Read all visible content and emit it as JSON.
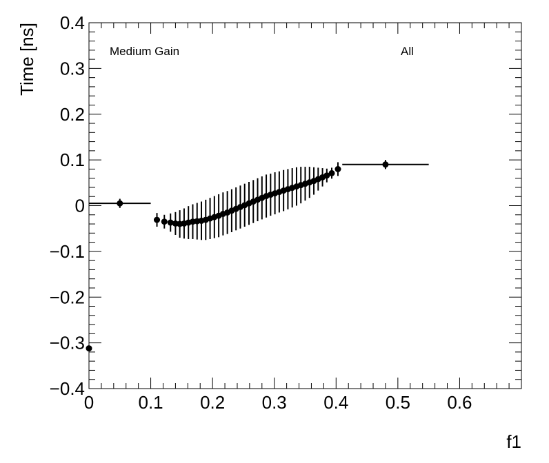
{
  "chart_data": {
    "type": "scatter",
    "title": "",
    "xlabel": "f1",
    "ylabel": "Time [ns]",
    "xlim": [
      0,
      0.7
    ],
    "ylim": [
      -0.4,
      0.4
    ],
    "x_ticks": [
      "0",
      "0.1",
      "0.2",
      "0.3",
      "0.4",
      "0.5",
      "0.6"
    ],
    "y_ticks": [
      "−0.4",
      "−0.3",
      "−0.2",
      "−0.1",
      "0",
      "0.1",
      "0.2",
      "0.3",
      "0.4"
    ],
    "grid": false,
    "annotations": {
      "left": "Medium Gain",
      "right": "All"
    },
    "series": [
      {
        "points": [
          {
            "x": 0.0,
            "y": -0.312,
            "xerr": 0.0,
            "yerr": 0.0
          },
          {
            "x": 0.05,
            "y": 0.005,
            "xerr": 0.05,
            "yerr": 0.01
          },
          {
            "x": 0.11,
            "y": -0.031,
            "xerr": 0.005,
            "yerr": 0.015
          },
          {
            "x": 0.122,
            "y": -0.035,
            "xerr": 0.0,
            "yerr": 0.015
          },
          {
            "x": 0.132,
            "y": -0.037,
            "xerr": 0.0,
            "yerr": 0.02
          },
          {
            "x": 0.14,
            "y": -0.039,
            "xerr": 0.0,
            "yerr": 0.025
          },
          {
            "x": 0.147,
            "y": -0.04,
            "xerr": 0.0,
            "yerr": 0.03
          },
          {
            "x": 0.154,
            "y": -0.039,
            "xerr": 0.0,
            "yerr": 0.033
          },
          {
            "x": 0.161,
            "y": -0.037,
            "xerr": 0.0,
            "yerr": 0.036
          },
          {
            "x": 0.168,
            "y": -0.035,
            "xerr": 0.0,
            "yerr": 0.038
          },
          {
            "x": 0.175,
            "y": -0.034,
            "xerr": 0.0,
            "yerr": 0.04
          },
          {
            "x": 0.182,
            "y": -0.033,
            "xerr": 0.0,
            "yerr": 0.042
          },
          {
            "x": 0.189,
            "y": -0.031,
            "xerr": 0.0,
            "yerr": 0.044
          },
          {
            "x": 0.196,
            "y": -0.028,
            "xerr": 0.0,
            "yerr": 0.045
          },
          {
            "x": 0.203,
            "y": -0.025,
            "xerr": 0.0,
            "yerr": 0.046
          },
          {
            "x": 0.21,
            "y": -0.022,
            "xerr": 0.0,
            "yerr": 0.047
          },
          {
            "x": 0.217,
            "y": -0.018,
            "xerr": 0.0,
            "yerr": 0.047
          },
          {
            "x": 0.224,
            "y": -0.015,
            "xerr": 0.0,
            "yerr": 0.047
          },
          {
            "x": 0.231,
            "y": -0.011,
            "xerr": 0.0,
            "yerr": 0.047
          },
          {
            "x": 0.238,
            "y": -0.007,
            "xerr": 0.0,
            "yerr": 0.047
          },
          {
            "x": 0.245,
            "y": -0.003,
            "xerr": 0.0,
            "yerr": 0.047
          },
          {
            "x": 0.252,
            "y": 0.001,
            "xerr": 0.0,
            "yerr": 0.047
          },
          {
            "x": 0.259,
            "y": 0.005,
            "xerr": 0.0,
            "yerr": 0.047
          },
          {
            "x": 0.266,
            "y": 0.009,
            "xerr": 0.0,
            "yerr": 0.047
          },
          {
            "x": 0.273,
            "y": 0.013,
            "xerr": 0.0,
            "yerr": 0.047
          },
          {
            "x": 0.28,
            "y": 0.017,
            "xerr": 0.0,
            "yerr": 0.047
          },
          {
            "x": 0.287,
            "y": 0.021,
            "xerr": 0.0,
            "yerr": 0.047
          },
          {
            "x": 0.294,
            "y": 0.024,
            "xerr": 0.0,
            "yerr": 0.046
          },
          {
            "x": 0.301,
            "y": 0.027,
            "xerr": 0.0,
            "yerr": 0.046
          },
          {
            "x": 0.308,
            "y": 0.03,
            "xerr": 0.0,
            "yerr": 0.045
          },
          {
            "x": 0.315,
            "y": 0.033,
            "xerr": 0.0,
            "yerr": 0.045
          },
          {
            "x": 0.322,
            "y": 0.036,
            "xerr": 0.0,
            "yerr": 0.044
          },
          {
            "x": 0.329,
            "y": 0.039,
            "xerr": 0.0,
            "yerr": 0.043
          },
          {
            "x": 0.336,
            "y": 0.042,
            "xerr": 0.0,
            "yerr": 0.042
          },
          {
            "x": 0.343,
            "y": 0.045,
            "xerr": 0.0,
            "yerr": 0.04
          },
          {
            "x": 0.35,
            "y": 0.048,
            "xerr": 0.0,
            "yerr": 0.037
          },
          {
            "x": 0.357,
            "y": 0.051,
            "xerr": 0.0,
            "yerr": 0.034
          },
          {
            "x": 0.364,
            "y": 0.054,
            "xerr": 0.0,
            "yerr": 0.03
          },
          {
            "x": 0.371,
            "y": 0.058,
            "xerr": 0.0,
            "yerr": 0.025
          },
          {
            "x": 0.378,
            "y": 0.062,
            "xerr": 0.0,
            "yerr": 0.02
          },
          {
            "x": 0.385,
            "y": 0.066,
            "xerr": 0.0,
            "yerr": 0.015
          },
          {
            "x": 0.393,
            "y": 0.071,
            "xerr": 0.0,
            "yerr": 0.012
          },
          {
            "x": 0.403,
            "y": 0.08,
            "xerr": 0.005,
            "yerr": 0.015
          },
          {
            "x": 0.48,
            "y": 0.09,
            "xerr": 0.07,
            "yerr": 0.01
          }
        ]
      }
    ]
  }
}
